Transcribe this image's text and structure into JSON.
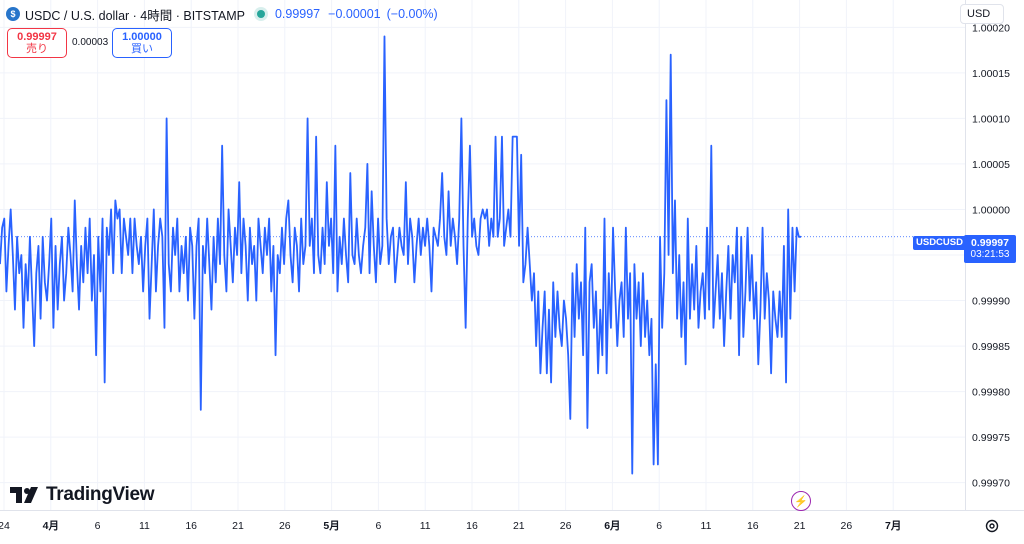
{
  "header": {
    "symbol_title": "USDC / U.S. dollar · 4時間 · BITSTAMP",
    "last_value": "0.99997",
    "change": "−0.00001",
    "change_pct": "(−0.00%)"
  },
  "trade": {
    "sell_price": "0.99997",
    "sell_label": "売り",
    "spread": "0.00003",
    "buy_price": "1.00000",
    "buy_label": "買い"
  },
  "currency": "USD",
  "brand": "TradingView",
  "price_label": {
    "symbol": "USDCUSD",
    "price": "0.99997",
    "countdown": "03:21:53"
  },
  "icons": {
    "coin": "usdc-coin-icon",
    "live": "market-open-dot-icon",
    "flash": "lightning-icon",
    "settings": "gear-icon",
    "logo": "tradingview-logo-icon"
  },
  "colors": {
    "line": "#2962ff",
    "sell": "#f23645",
    "buy": "#2962ff",
    "live": "#26a69a"
  },
  "chart_data": {
    "type": "line",
    "grid": true,
    "x_tick_labels": [
      "24",
      "4月",
      "6",
      "11",
      "16",
      "21",
      "26",
      "5月",
      "6",
      "11",
      "16",
      "21",
      "26",
      "6月",
      "6",
      "11",
      "16",
      "21",
      "26",
      "7月"
    ],
    "y_tick_labels": [
      "1.00020",
      "1.00015",
      "1.00010",
      "1.00005",
      "1.00000",
      "0.99995",
      "0.99990",
      "0.99985",
      "0.99980",
      "0.99975",
      "0.99970"
    ],
    "ylim": [
      0.99967,
      1.00023
    ],
    "current_price": 0.99997,
    "series": [
      {
        "values": [
          0.99994,
          0.99998,
          0.99999,
          0.99991,
          0.99996,
          1.0,
          0.99995,
          0.99989,
          0.99997,
          0.99993,
          0.99995,
          0.99987,
          0.99994,
          0.9999,
          0.99997,
          0.99991,
          0.99985,
          0.99993,
          0.99996,
          0.99988,
          0.99997,
          0.99992,
          0.9999,
          0.99994,
          0.99999,
          0.99987,
          0.99996,
          0.99989,
          0.99994,
          0.99997,
          0.9999,
          0.99993,
          0.99998,
          0.99995,
          0.99991,
          1.00001,
          0.99994,
          0.99989,
          0.99996,
          0.99992,
          0.99998,
          0.99993,
          0.99999,
          0.9999,
          0.99995,
          0.99984,
          0.99997,
          0.99991,
          0.99999,
          0.99981,
          0.99998,
          0.99995,
          1.0,
          0.99993,
          1.00001,
          0.99999,
          1.0,
          0.99993,
          0.99999,
          0.99997,
          0.99995,
          0.99999,
          0.99993,
          0.99999,
          0.99996,
          0.99994,
          0.99997,
          0.99991,
          0.99996,
          0.99999,
          0.99988,
          0.99994,
          1.0,
          0.99991,
          0.99996,
          0.99999,
          0.99997,
          0.99987,
          1.0001,
          0.99994,
          0.99991,
          0.99998,
          0.99995,
          0.99999,
          0.99991,
          0.99996,
          0.99993,
          0.99997,
          0.9999,
          0.99998,
          0.99996,
          0.99988,
          0.99996,
          0.99999,
          0.99978,
          0.99996,
          0.99993,
          0.99999,
          0.99994,
          0.99989,
          0.99997,
          0.99992,
          0.99999,
          0.99994,
          1.00007,
          0.99995,
          0.99991,
          1.0,
          0.99996,
          0.99992,
          0.99998,
          0.99995,
          1.00003,
          0.99993,
          0.99999,
          0.99996,
          0.9999,
          0.99998,
          0.99994,
          0.99996,
          0.9999,
          0.99999,
          0.99996,
          0.99993,
          0.99998,
          0.99995,
          0.99999,
          0.99991,
          0.99996,
          0.99984,
          0.99995,
          0.99993,
          0.99998,
          0.99994,
          0.99999,
          1.00001,
          0.99995,
          0.99992,
          0.99998,
          0.99996,
          0.99991,
          0.99999,
          0.99994,
          0.99996,
          1.0001,
          0.99996,
          0.99999,
          0.99993,
          1.00008,
          0.99995,
          0.99993,
          0.99998,
          0.99994,
          1.00003,
          0.99996,
          0.99999,
          0.99993,
          1.00007,
          0.99991,
          0.99997,
          0.99994,
          0.99999,
          0.99995,
          0.99992,
          1.00004,
          0.99995,
          0.99994,
          0.99999,
          0.99995,
          0.99993,
          0.99996,
          0.99998,
          1.00005,
          0.99993,
          1.00002,
          0.99996,
          0.99992,
          0.99999,
          0.99994,
          0.99996,
          1.00019,
          0.99999,
          0.99994,
          0.99997,
          0.99998,
          0.99992,
          0.99995,
          0.99998,
          0.99996,
          0.99995,
          1.00003,
          0.99994,
          0.99999,
          0.99997,
          0.99992,
          0.99996,
          0.99999,
          0.99995,
          0.99998,
          0.99996,
          0.99999,
          0.99996,
          0.99991,
          0.99998,
          0.99997,
          0.99996,
          0.99999,
          1.00004,
          0.99997,
          0.99995,
          1.00002,
          0.99996,
          0.99999,
          0.99997,
          0.99994,
          0.99999,
          1.0001,
          0.99996,
          0.99987,
          0.99999,
          1.00007,
          0.99997,
          0.99999,
          0.99996,
          0.99995,
          0.99999,
          1.0,
          0.99999,
          1.0,
          0.99996,
          0.99999,
          0.99997,
          1.00008,
          0.99997,
          0.99999,
          1.00008,
          0.99996,
          0.99998,
          1.0,
          0.99997,
          1.00008,
          1.00008,
          1.00008,
          0.99996,
          1.00006,
          0.99992,
          0.99994,
          0.99998,
          0.99994,
          0.9999,
          0.99993,
          0.99985,
          0.99991,
          0.99982,
          0.99987,
          0.99991,
          0.99982,
          0.99989,
          0.99981,
          0.99992,
          0.99986,
          0.99991,
          0.99987,
          0.99985,
          0.9999,
          0.99988,
          0.99984,
          0.99977,
          0.99993,
          0.99986,
          0.99994,
          0.99988,
          0.99992,
          0.99984,
          0.99998,
          0.99976,
          0.99992,
          0.99994,
          0.99987,
          0.99991,
          0.99982,
          0.99989,
          0.99984,
          0.99999,
          0.99982,
          0.99993,
          0.99987,
          0.99998,
          0.99991,
          0.99985,
          0.9999,
          0.99992,
          0.99986,
          0.99998,
          0.99988,
          0.99993,
          0.99971,
          0.99994,
          0.99988,
          0.99992,
          0.99985,
          0.99993,
          0.99986,
          0.9999,
          0.99984,
          0.99988,
          0.99972,
          0.99983,
          0.99972,
          0.99997,
          0.99987,
          0.99993,
          1.00012,
          0.99995,
          1.00017,
          0.99993,
          1.00001,
          0.99988,
          0.99995,
          0.99986,
          0.99992,
          0.99983,
          0.99999,
          0.99988,
          0.99994,
          0.99989,
          0.99996,
          0.99987,
          0.99991,
          0.99993,
          0.99988,
          0.99998,
          0.99989,
          1.00007,
          0.99987,
          0.99991,
          0.99995,
          0.99988,
          0.99993,
          0.99985,
          0.99991,
          0.99996,
          0.99988,
          0.99995,
          0.99992,
          0.99998,
          0.99984,
          0.99997,
          0.99986,
          0.99991,
          0.99998,
          0.9999,
          0.99995,
          0.99988,
          0.99992,
          0.99983,
          0.99989,
          0.99998,
          0.99988,
          0.99993,
          0.9999,
          0.99982,
          0.99991,
          0.99988,
          0.99986,
          0.99991,
          0.99986,
          0.99996,
          0.99981,
          1.0,
          0.99988,
          0.99998,
          0.99991,
          0.99998,
          0.99997,
          0.99997
        ]
      }
    ]
  }
}
